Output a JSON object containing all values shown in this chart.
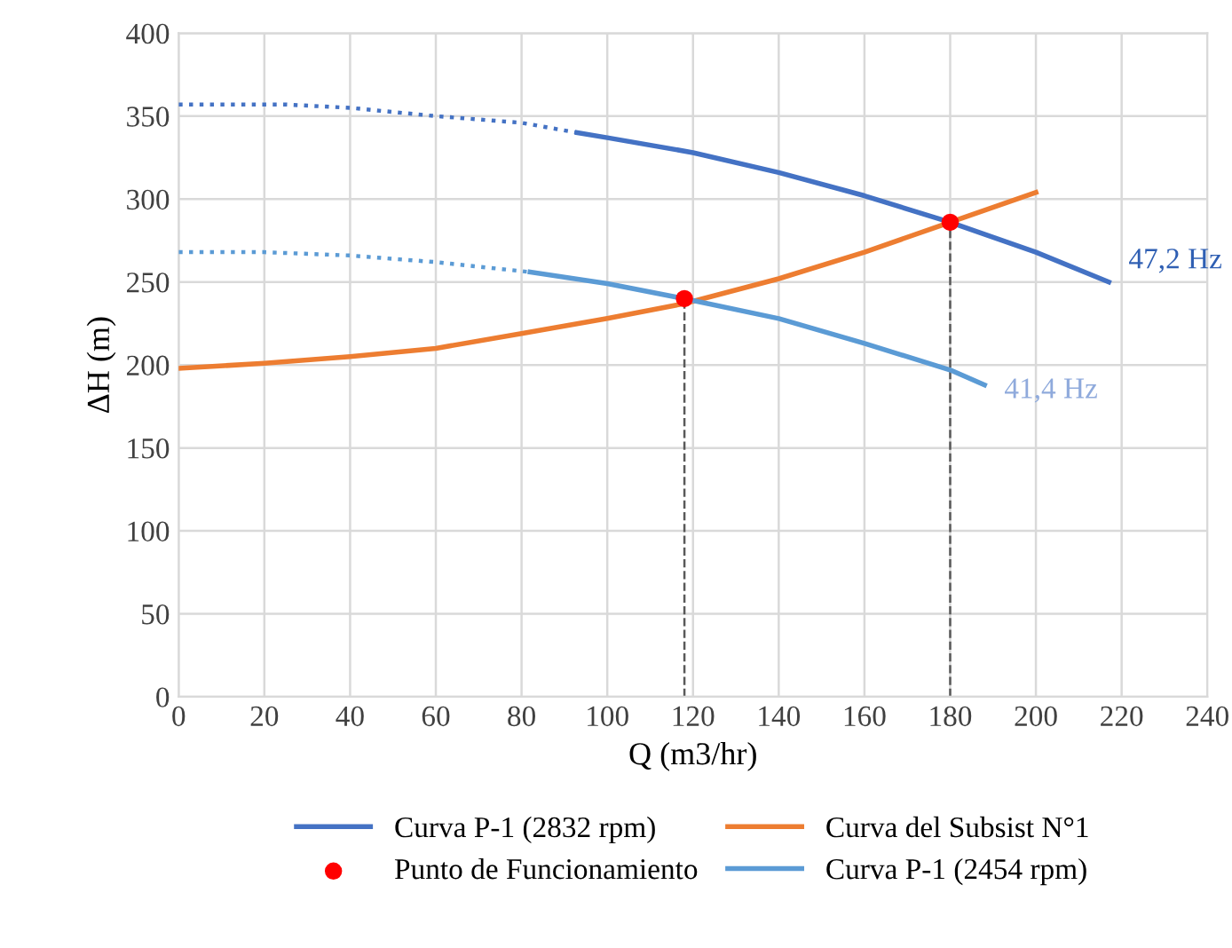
{
  "chart_data": {
    "type": "line",
    "xlabel": "Q (m3/hr)",
    "ylabel": "ΔH (m)",
    "xlim": [
      0,
      240
    ],
    "xticks": [
      0,
      20,
      40,
      60,
      80,
      100,
      120,
      140,
      160,
      180,
      200,
      220,
      240
    ],
    "ylim": [
      0,
      400
    ],
    "yticks": [
      0,
      50,
      100,
      150,
      200,
      250,
      300,
      350,
      400
    ],
    "grid": true,
    "legend": "bottom",
    "line_style": "solid",
    "marker": "none",
    "series": [
      {
        "name": "Curva P-1 (2832 rpm)",
        "color": "#4472c4",
        "x": [
          93,
          100,
          120,
          140,
          160,
          180,
          200,
          217
        ],
        "values": [
          340,
          337,
          328,
          316,
          302,
          286,
          268,
          250
        ]
      },
      {
        "color": "#4472c4",
        "line_style": "dotted",
        "x": [
          0,
          25,
          40,
          60,
          80,
          93
        ],
        "values": [
          357,
          357,
          355,
          350,
          346,
          340
        ]
      },
      {
        "name": "Curva del Subsist N°1",
        "color": "#ed7d31",
        "x": [
          0,
          20,
          40,
          60,
          80,
          100,
          118,
          140,
          160,
          180,
          200
        ],
        "values": [
          198,
          201,
          205,
          210,
          219,
          228,
          237,
          252,
          268,
          286,
          304
        ]
      },
      {
        "name": "Punto de Funcionamiento",
        "type": "scatter",
        "marker": "circle",
        "color": "#ff0000",
        "x": [
          118,
          180
        ],
        "values": [
          240,
          286
        ]
      },
      {
        "name": "Curva P-1 (2454 rpm)",
        "color": "#5b9bd5",
        "x": [
          82,
          100,
          118,
          140,
          160,
          180,
          188
        ],
        "values": [
          256,
          249,
          240,
          228,
          213,
          197,
          188
        ]
      },
      {
        "color": "#5b9bd5",
        "line_style": "dotted",
        "x": [
          0,
          20,
          40,
          60,
          82
        ],
        "values": [
          268,
          268,
          266,
          262,
          256
        ]
      }
    ],
    "ref_lines": [
      {
        "axis": "x",
        "value": 118,
        "color": "#595959",
        "line_style": "dashed"
      },
      {
        "axis": "x",
        "value": 180,
        "color": "#595959",
        "line_style": "dashed"
      }
    ],
    "annotations": [
      {
        "text": "47,2 Hz",
        "x": 217,
        "y": 250
      },
      {
        "text": "41,4 Hz",
        "x": 188,
        "y": 188
      }
    ]
  }
}
